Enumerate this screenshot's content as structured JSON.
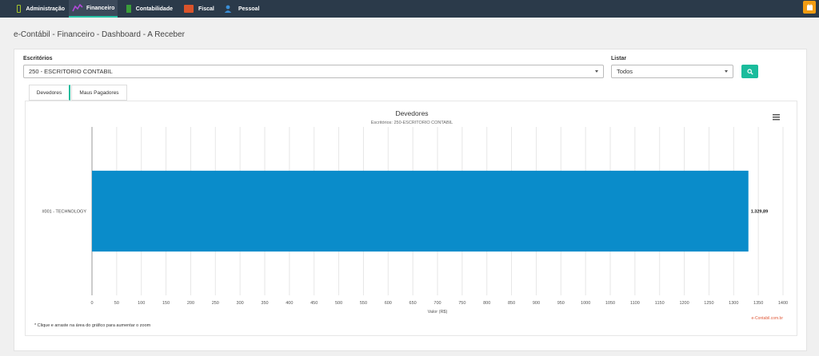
{
  "nav": {
    "items": [
      {
        "label": "Administração",
        "icon": "folder-icon"
      },
      {
        "label": "Financeiro",
        "icon": "chart-icon",
        "active": true
      },
      {
        "label": "Contabilidade",
        "icon": "spreadsheet-icon"
      },
      {
        "label": "Fiscal",
        "icon": "book-icon"
      },
      {
        "label": "Pessoal",
        "icon": "person-icon"
      }
    ],
    "accent": "#27c2a6",
    "bg": "#2b3a4a"
  },
  "page": {
    "title": "e-Contábil - Financeiro - Dashboard - A Receber"
  },
  "filters": {
    "escritorios_label": "Escritórios",
    "escritorios_value": "250 - ESCRITORIO CONTABIL",
    "listar_label": "Listar",
    "listar_value": "Todos"
  },
  "tabs": [
    {
      "label": "Devedores",
      "active": true
    },
    {
      "label": "Maus Pagadores",
      "active": false
    }
  ],
  "footnote": "* Clique e arraste na área do gráfico para aumentar o zoom",
  "credit": "e-Contabil.com.br",
  "chart_data": {
    "type": "bar",
    "orientation": "horizontal",
    "title": "Devedores",
    "subtitle": "Escritórios: 250-ESCRITORIO CONTABIL",
    "categories": [
      "#001 - TECHNOLOGY"
    ],
    "values": [
      1329.89
    ],
    "value_labels": [
      "1.329,89"
    ],
    "xlabel": "Valor (R$)",
    "ylabel": "",
    "xlim": [
      0,
      1400
    ],
    "ticks": [
      "0",
      "50",
      "100",
      "150",
      "200",
      "250",
      "300",
      "350",
      "400",
      "450",
      "500",
      "550",
      "600",
      "650",
      "700",
      "750",
      "800",
      "850",
      "900",
      "950",
      "1000",
      "1050",
      "1100",
      "1150",
      "1200",
      "1250",
      "1300",
      "1350",
      "1400"
    ],
    "tick_values": [
      0,
      50,
      100,
      150,
      200,
      250,
      300,
      350,
      400,
      450,
      500,
      550,
      600,
      650,
      700,
      750,
      800,
      850,
      900,
      950,
      1000,
      1050,
      1100,
      1150,
      1200,
      1250,
      1300,
      1350,
      1400
    ],
    "grid": true,
    "bar_color": "#0a8cca",
    "legend": "none"
  }
}
